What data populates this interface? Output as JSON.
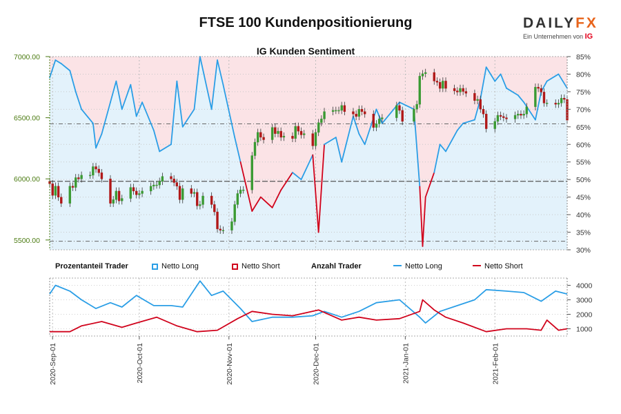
{
  "title": "FTSE 100 Kundenpositionierung",
  "subtitle": "IG Kunden Sentiment",
  "logo": {
    "brand_a": "DAILY",
    "brand_b": "FX",
    "tagline": "Ein Unternehmen von",
    "ig": "IG"
  },
  "legend": {
    "group1": "Prozentanteil Trader",
    "long_pct": "Netto Long",
    "short_pct": "Netto Short",
    "group2": "Anzahl Trader",
    "long_cnt": "Netto Long",
    "short_cnt": "Netto Short"
  },
  "colors": {
    "long": "#2a9ee6",
    "short": "#d0021b",
    "up": "#3a9a32",
    "down": "#b01818",
    "fill_long": "#e3f2fb",
    "fill_short": "#fbe3e6",
    "axis_left": "#4a7a10"
  },
  "chart_data": [
    {
      "type": "candlestick+area",
      "name": "price_and_sentiment",
      "x_start": "2020-08-31",
      "x_end": "2021-02-26",
      "y_left_label_unit": "FTSE 100",
      "y_left_ticks": [
        "5500.00",
        "6000.00",
        "6500.00",
        "7000.00"
      ],
      "y_left_range": [
        5420,
        7000
      ],
      "y_right_ticks": [
        "30%",
        "35%",
        "40%",
        "45%",
        "50%",
        "55%",
        "60%",
        "65%",
        "70%",
        "75%",
        "80%",
        "85%"
      ],
      "y_right_range": [
        30,
        85
      ],
      "x_ticks": [
        "2020-Sep-01",
        "2020-Oct-01",
        "2020-Nov-01",
        "2020-Dec-01",
        "2021-Jan-01",
        "2021-Feb-01"
      ],
      "x_tick_dates": [
        "2020-09-01",
        "2020-10-01",
        "2020-11-01",
        "2020-12-01",
        "2021-01-01",
        "2021-02-01"
      ],
      "reference_lines": {
        "price_upper": 6450,
        "price_lower": 5490,
        "price_mid": 5980
      },
      "price_close": [
        [
          "2020-08-31",
          5960
        ],
        [
          "2020-09-01",
          5865
        ],
        [
          "2020-09-02",
          5940
        ],
        [
          "2020-09-03",
          5850
        ],
        [
          "2020-09-04",
          5800
        ],
        [
          "2020-09-07",
          5940
        ],
        [
          "2020-09-08",
          5930
        ],
        [
          "2020-09-09",
          6010
        ],
        [
          "2020-09-10",
          6000
        ],
        [
          "2020-09-11",
          6030
        ],
        [
          "2020-09-14",
          6030
        ],
        [
          "2020-09-15",
          6100
        ],
        [
          "2020-09-16",
          6080
        ],
        [
          "2020-09-17",
          6050
        ],
        [
          "2020-09-18",
          6000
        ],
        [
          "2020-09-21",
          5800
        ],
        [
          "2020-09-22",
          5830
        ],
        [
          "2020-09-23",
          5900
        ],
        [
          "2020-09-24",
          5820
        ],
        [
          "2020-09-25",
          5840
        ],
        [
          "2020-09-28",
          5930
        ],
        [
          "2020-09-29",
          5900
        ],
        [
          "2020-09-30",
          5870
        ],
        [
          "2020-10-01",
          5880
        ],
        [
          "2020-10-02",
          5900
        ],
        [
          "2020-10-05",
          5940
        ],
        [
          "2020-10-06",
          5950
        ],
        [
          "2020-10-07",
          5950
        ],
        [
          "2020-10-08",
          5980
        ],
        [
          "2020-10-09",
          6020
        ],
        [
          "2020-10-12",
          6000
        ],
        [
          "2020-10-13",
          5970
        ],
        [
          "2020-10-14",
          5940
        ],
        [
          "2020-10-15",
          5830
        ],
        [
          "2020-10-16",
          5920
        ],
        [
          "2020-10-19",
          5880
        ],
        [
          "2020-10-20",
          5890
        ],
        [
          "2020-10-21",
          5780
        ],
        [
          "2020-10-22",
          5790
        ],
        [
          "2020-10-23",
          5860
        ],
        [
          "2020-10-26",
          5790
        ],
        [
          "2020-10-27",
          5730
        ],
        [
          "2020-10-28",
          5590
        ],
        [
          "2020-10-29",
          5580
        ],
        [
          "2020-10-30",
          5580
        ],
        [
          "2020-11-02",
          5650
        ],
        [
          "2020-11-03",
          5790
        ],
        [
          "2020-11-04",
          5880
        ],
        [
          "2020-11-05",
          5910
        ],
        [
          "2020-11-06",
          5910
        ],
        [
          "2020-11-09",
          6190
        ],
        [
          "2020-11-10",
          6300
        ],
        [
          "2020-11-11",
          6380
        ],
        [
          "2020-11-12",
          6340
        ],
        [
          "2020-11-13",
          6320
        ],
        [
          "2020-11-16",
          6420
        ],
        [
          "2020-11-17",
          6370
        ],
        [
          "2020-11-18",
          6390
        ],
        [
          "2020-11-19",
          6340
        ],
        [
          "2020-11-20",
          6350
        ],
        [
          "2020-11-23",
          6330
        ],
        [
          "2020-11-24",
          6430
        ],
        [
          "2020-11-25",
          6390
        ],
        [
          "2020-11-26",
          6360
        ],
        [
          "2020-11-27",
          6370
        ],
        [
          "2020-11-30",
          6270
        ],
        [
          "2020-12-01",
          6380
        ],
        [
          "2020-12-02",
          6460
        ],
        [
          "2020-12-03",
          6490
        ],
        [
          "2020-12-04",
          6550
        ],
        [
          "2020-12-07",
          6560
        ],
        [
          "2020-12-08",
          6560
        ],
        [
          "2020-12-09",
          6560
        ],
        [
          "2020-12-10",
          6600
        ],
        [
          "2020-12-11",
          6550
        ],
        [
          "2020-12-14",
          6530
        ],
        [
          "2020-12-15",
          6510
        ],
        [
          "2020-12-16",
          6570
        ],
        [
          "2020-12-17",
          6550
        ],
        [
          "2020-12-18",
          6530
        ],
        [
          "2020-12-21",
          6420
        ],
        [
          "2020-12-22",
          6450
        ],
        [
          "2020-12-23",
          6490
        ],
        [
          "2020-12-24",
          6500
        ],
        [
          "2020-12-29",
          6600
        ],
        [
          "2020-12-30",
          6560
        ],
        [
          "2020-12-31",
          6470
        ],
        [
          "2021-01-04",
          6570
        ],
        [
          "2021-01-05",
          6610
        ],
        [
          "2021-01-06",
          6840
        ],
        [
          "2021-01-07",
          6860
        ],
        [
          "2021-01-08",
          6870
        ],
        [
          "2021-01-11",
          6800
        ],
        [
          "2021-01-12",
          6790
        ],
        [
          "2021-01-13",
          6740
        ],
        [
          "2021-01-14",
          6800
        ],
        [
          "2021-01-15",
          6740
        ],
        [
          "2021-01-18",
          6720
        ],
        [
          "2021-01-19",
          6710
        ],
        [
          "2021-01-20",
          6740
        ],
        [
          "2021-01-21",
          6715
        ],
        [
          "2021-01-22",
          6700
        ],
        [
          "2021-01-25",
          6640
        ],
        [
          "2021-01-26",
          6650
        ],
        [
          "2021-01-27",
          6570
        ],
        [
          "2021-01-28",
          6530
        ],
        [
          "2021-01-29",
          6410
        ],
        [
          "2021-02-01",
          6470
        ],
        [
          "2021-02-02",
          6520
        ],
        [
          "2021-02-03",
          6510
        ],
        [
          "2021-02-04",
          6500
        ],
        [
          "2021-02-05",
          6490
        ],
        [
          "2021-02-08",
          6520
        ],
        [
          "2021-02-09",
          6530
        ],
        [
          "2021-02-10",
          6520
        ],
        [
          "2021-02-11",
          6530
        ],
        [
          "2021-02-12",
          6590
        ],
        [
          "2021-02-15",
          6750
        ],
        [
          "2021-02-16",
          6740
        ],
        [
          "2021-02-17",
          6710
        ],
        [
          "2021-02-18",
          6620
        ],
        [
          "2021-02-19",
          6620
        ],
        [
          "2021-02-22",
          6610
        ],
        [
          "2021-02-23",
          6620
        ],
        [
          "2021-02-24",
          6660
        ],
        [
          "2021-02-25",
          6650
        ],
        [
          "2021-02-26",
          6480
        ]
      ],
      "net_long_pct": [
        [
          "2020-08-31",
          79
        ],
        [
          "2020-09-02",
          84
        ],
        [
          "2020-09-04",
          83
        ],
        [
          "2020-09-07",
          81
        ],
        [
          "2020-09-09",
          75
        ],
        [
          "2020-09-11",
          70
        ],
        [
          "2020-09-15",
          66
        ],
        [
          "2020-09-16",
          59
        ],
        [
          "2020-09-18",
          63
        ],
        [
          "2020-09-21",
          72
        ],
        [
          "2020-09-23",
          78
        ],
        [
          "2020-09-25",
          70
        ],
        [
          "2020-09-28",
          77
        ],
        [
          "2020-09-30",
          68
        ],
        [
          "2020-10-02",
          72
        ],
        [
          "2020-10-06",
          64
        ],
        [
          "2020-10-08",
          58
        ],
        [
          "2020-10-12",
          60
        ],
        [
          "2020-10-14",
          78
        ],
        [
          "2020-10-16",
          65
        ],
        [
          "2020-10-20",
          70
        ],
        [
          "2020-10-22",
          85
        ],
        [
          "2020-10-26",
          70
        ],
        [
          "2020-10-28",
          84
        ],
        [
          "2020-10-30",
          77
        ],
        [
          "2020-11-03",
          62
        ],
        [
          "2020-11-05",
          55
        ],
        [
          "2020-11-09",
          41
        ],
        [
          "2020-11-12",
          45
        ],
        [
          "2020-11-16",
          42
        ],
        [
          "2020-11-19",
          47
        ],
        [
          "2020-11-23",
          52
        ],
        [
          "2020-11-26",
          50
        ],
        [
          "2020-11-30",
          57
        ],
        [
          "2020-12-02",
          35
        ],
        [
          "2020-12-04",
          60
        ],
        [
          "2020-12-08",
          62
        ],
        [
          "2020-12-10",
          55
        ],
        [
          "2020-12-14",
          68
        ],
        [
          "2020-12-16",
          63
        ],
        [
          "2020-12-18",
          60
        ],
        [
          "2020-12-22",
          70
        ],
        [
          "2020-12-24",
          66
        ],
        [
          "2020-12-30",
          72
        ],
        [
          "2021-01-04",
          70
        ],
        [
          "2021-01-06",
          48
        ],
        [
          "2021-01-07",
          31
        ],
        [
          "2021-01-08",
          45
        ],
        [
          "2021-01-11",
          52
        ],
        [
          "2021-01-13",
          60
        ],
        [
          "2021-01-15",
          58
        ],
        [
          "2021-01-19",
          64
        ],
        [
          "2021-01-21",
          66
        ],
        [
          "2021-01-25",
          67
        ],
        [
          "2021-01-27",
          73
        ],
        [
          "2021-01-29",
          82
        ],
        [
          "2021-02-01",
          78
        ],
        [
          "2021-02-03",
          80
        ],
        [
          "2021-02-05",
          76
        ],
        [
          "2021-02-09",
          74
        ],
        [
          "2021-02-11",
          72
        ],
        [
          "2021-02-15",
          67
        ],
        [
          "2021-02-17",
          75
        ],
        [
          "2021-02-19",
          78
        ],
        [
          "2021-02-23",
          80
        ],
        [
          "2021-02-26",
          76
        ]
      ]
    },
    {
      "type": "line",
      "name": "trader_counts",
      "y_ticks": [
        "1000",
        "2000",
        "3000",
        "4000"
      ],
      "y_range": [
        500,
        4500
      ],
      "series": [
        {
          "name": "Netto Long",
          "points": [
            [
              "2020-08-31",
              3400
            ],
            [
              "2020-09-02",
              4000
            ],
            [
              "2020-09-07",
              3600
            ],
            [
              "2020-09-11",
              3000
            ],
            [
              "2020-09-16",
              2400
            ],
            [
              "2020-09-21",
              2800
            ],
            [
              "2020-09-25",
              2500
            ],
            [
              "2020-09-30",
              3300
            ],
            [
              "2020-10-06",
              2600
            ],
            [
              "2020-10-12",
              2600
            ],
            [
              "2020-10-16",
              2500
            ],
            [
              "2020-10-22",
              4300
            ],
            [
              "2020-10-26",
              3300
            ],
            [
              "2020-10-30",
              3600
            ],
            [
              "2020-11-05",
              2400
            ],
            [
              "2020-11-09",
              1500
            ],
            [
              "2020-11-16",
              1800
            ],
            [
              "2020-11-23",
              1800
            ],
            [
              "2020-11-30",
              1900
            ],
            [
              "2020-12-04",
              2200
            ],
            [
              "2020-12-10",
              1800
            ],
            [
              "2020-12-16",
              2200
            ],
            [
              "2020-12-22",
              2800
            ],
            [
              "2020-12-30",
              3000
            ],
            [
              "2021-01-06",
              1800
            ],
            [
              "2021-01-08",
              1400
            ],
            [
              "2021-01-13",
              2200
            ],
            [
              "2021-01-19",
              2600
            ],
            [
              "2021-01-25",
              3000
            ],
            [
              "2021-01-29",
              3700
            ],
            [
              "2021-02-05",
              3600
            ],
            [
              "2021-02-11",
              3500
            ],
            [
              "2021-02-17",
              2900
            ],
            [
              "2021-02-22",
              3600
            ],
            [
              "2021-02-26",
              3400
            ]
          ]
        },
        {
          "name": "Netto Short",
          "points": [
            [
              "2020-08-31",
              800
            ],
            [
              "2020-09-07",
              800
            ],
            [
              "2020-09-11",
              1200
            ],
            [
              "2020-09-18",
              1500
            ],
            [
              "2020-09-25",
              1100
            ],
            [
              "2020-09-30",
              1400
            ],
            [
              "2020-10-07",
              1800
            ],
            [
              "2020-10-14",
              1200
            ],
            [
              "2020-10-21",
              800
            ],
            [
              "2020-10-28",
              900
            ],
            [
              "2020-11-04",
              1700
            ],
            [
              "2020-11-09",
              2200
            ],
            [
              "2020-11-16",
              2000
            ],
            [
              "2020-11-23",
              1900
            ],
            [
              "2020-12-02",
              2300
            ],
            [
              "2020-12-10",
              1600
            ],
            [
              "2020-12-16",
              1800
            ],
            [
              "2020-12-22",
              1600
            ],
            [
              "2020-12-30",
              1700
            ],
            [
              "2021-01-06",
              2200
            ],
            [
              "2021-01-07",
              3000
            ],
            [
              "2021-01-11",
              2300
            ],
            [
              "2021-01-15",
              1800
            ],
            [
              "2021-01-21",
              1400
            ],
            [
              "2021-01-29",
              800
            ],
            [
              "2021-02-05",
              1000
            ],
            [
              "2021-02-12",
              1000
            ],
            [
              "2021-02-17",
              900
            ],
            [
              "2021-02-19",
              1600
            ],
            [
              "2021-02-23",
              900
            ],
            [
              "2021-02-26",
              1000
            ]
          ]
        }
      ]
    }
  ]
}
